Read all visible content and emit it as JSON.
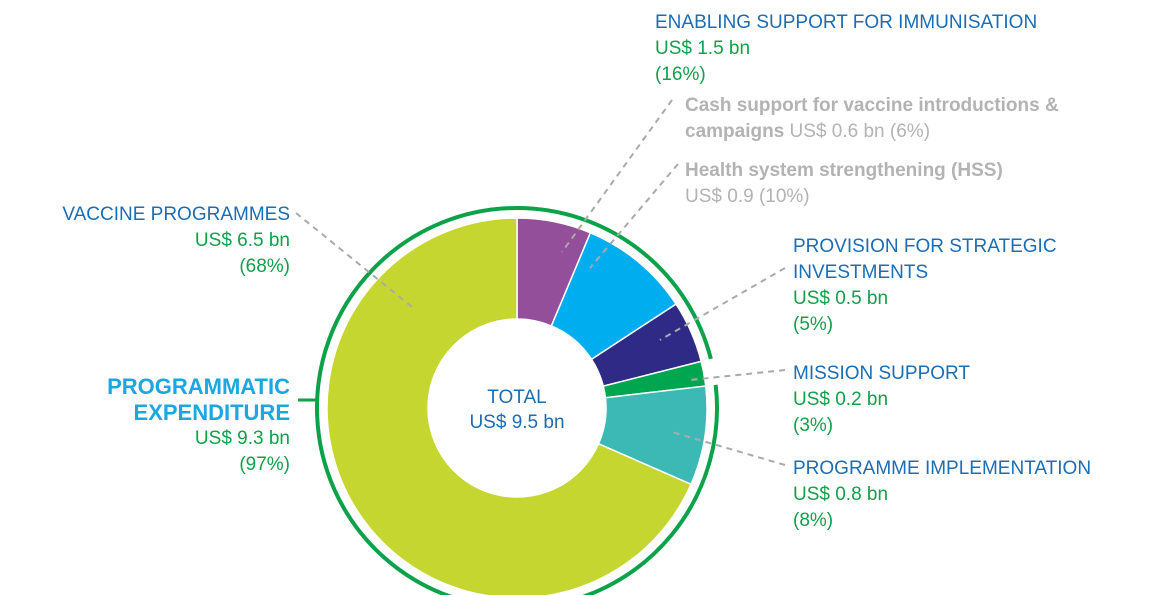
{
  "chart_data": {
    "type": "pie",
    "donut": true,
    "center_label": "TOTAL",
    "total": 9.5,
    "total_label": "US$ 9.5 bn",
    "categories": [
      "Cash support for vaccine introductions & campaigns",
      "Health system strengthening (HSS)",
      "PROVISION FOR STRATEGIC INVESTMENTS",
      "MISSION SUPPORT",
      "PROGRAMME IMPLEMENTATION",
      "VACCINE PROGRAMMES"
    ],
    "values": [
      0.6,
      0.9,
      0.5,
      0.2,
      0.8,
      6.5
    ],
    "value_labels": [
      "US$ 0.6 bn",
      "US$ 0.9",
      "US$ 0.5 bn",
      "US$ 0.2 bn",
      "US$ 0.8 bn",
      "US$ 6.5 bn"
    ],
    "percents": [
      6,
      10,
      5,
      3,
      8,
      68
    ],
    "percent_labels": [
      "(6%)",
      "(10%)",
      "(5%)",
      "(3%)",
      "(8%)",
      "(68%)"
    ],
    "colors": [
      "#944f9b",
      "#00aeef",
      "#2e2a86",
      "#00a54f",
      "#3db9b5",
      "#c6d631"
    ],
    "groups": [
      {
        "name": "ENABLING SUPPORT FOR IMMUNISATION",
        "value": 1.5,
        "value_label": "US$ 1.5 bn",
        "percent": 16,
        "percent_label": "(16%)"
      },
      {
        "name": "PROGRAMMATIC EXPENDITURE",
        "value": 9.3,
        "value_label": "US$ 9.3 bn",
        "percent": 97,
        "percent_label": "(97%)",
        "color": "#0ca24a"
      }
    ]
  }
}
